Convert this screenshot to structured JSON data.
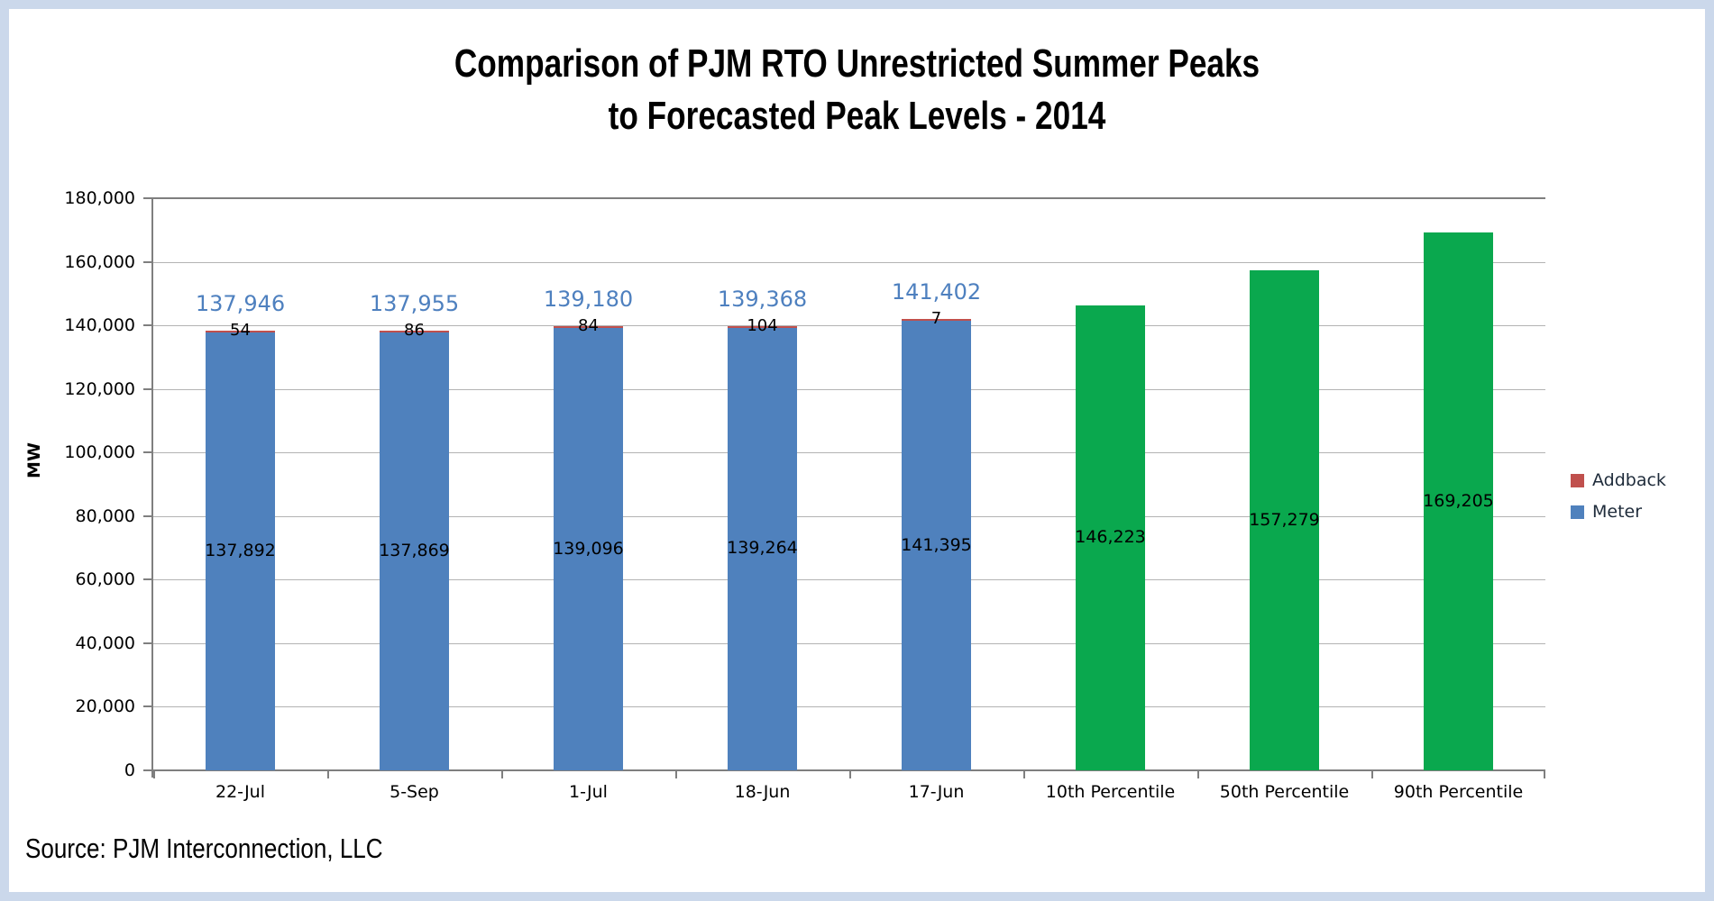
{
  "page": {
    "border_color": "#CBD8EB",
    "background": "#FFFFFF"
  },
  "chart_data": {
    "type": "bar",
    "stacked": true,
    "title_line1": "Comparison of PJM RTO Unrestricted Summer Peaks",
    "title_line2": "to Forecasted Peak Levels - 2014",
    "ylabel": "MW",
    "ylim": [
      0,
      180000
    ],
    "ytick_step": 20000,
    "grid": true,
    "legend_position": "right",
    "yticks": [
      {
        "v": 180000,
        "label": "180,000"
      },
      {
        "v": 160000,
        "label": "160,000"
      },
      {
        "v": 140000,
        "label": "140,000"
      },
      {
        "v": 120000,
        "label": "120,000"
      },
      {
        "v": 100000,
        "label": "100,000"
      },
      {
        "v": 80000,
        "label": "80,000"
      },
      {
        "v": 60000,
        "label": "60,000"
      },
      {
        "v": 40000,
        "label": "40,000"
      },
      {
        "v": 20000,
        "label": "20,000"
      },
      {
        "v": 0,
        "label": "0"
      }
    ],
    "categories": [
      "22-Jul",
      "5-Sep",
      "1-Jul",
      "18-Jun",
      "17-Jun",
      "10th Percentile",
      "50th Percentile",
      "90th Percentile"
    ],
    "bars": [
      {
        "category": "22-Jul",
        "type": "actual",
        "meter": 137892,
        "addback": 54,
        "total": 137946,
        "meter_label": "137,892",
        "addback_label": "54",
        "total_label": "137,946"
      },
      {
        "category": "5-Sep",
        "type": "actual",
        "meter": 137869,
        "addback": 86,
        "total": 137955,
        "meter_label": "137,869",
        "addback_label": "86",
        "total_label": "137,955"
      },
      {
        "category": "1-Jul",
        "type": "actual",
        "meter": 139096,
        "addback": 84,
        "total": 139180,
        "meter_label": "139,096",
        "addback_label": "84",
        "total_label": "139,180"
      },
      {
        "category": "18-Jun",
        "type": "actual",
        "meter": 139264,
        "addback": 104,
        "total": 139368,
        "meter_label": "139,264",
        "addback_label": "104",
        "total_label": "139,368"
      },
      {
        "category": "17-Jun",
        "type": "actual",
        "meter": 141395,
        "addback": 7,
        "total": 141402,
        "meter_label": "141,395",
        "addback_label": "7",
        "total_label": "141,402"
      },
      {
        "category": "10th Percentile",
        "type": "forecast",
        "value": 146223,
        "value_label": "146,223"
      },
      {
        "category": "50th Percentile",
        "type": "forecast",
        "value": 157279,
        "value_label": "157,279"
      },
      {
        "category": "90th Percentile",
        "type": "forecast",
        "value": 169205,
        "value_label": "169,205"
      }
    ],
    "colors": {
      "meter": "#4F81BD",
      "addback": "#C0504D",
      "forecast": "#0AA84E",
      "total_label": "#4E80BF",
      "gridline": "#B3B3B3",
      "axis": "#7F7F7F"
    },
    "legend": [
      {
        "label": "Addback",
        "color": "#C0504D"
      },
      {
        "label": "Meter",
        "color": "#4F81BD"
      }
    ]
  },
  "footer": {
    "source": "Source: PJM Interconnection, LLC"
  }
}
